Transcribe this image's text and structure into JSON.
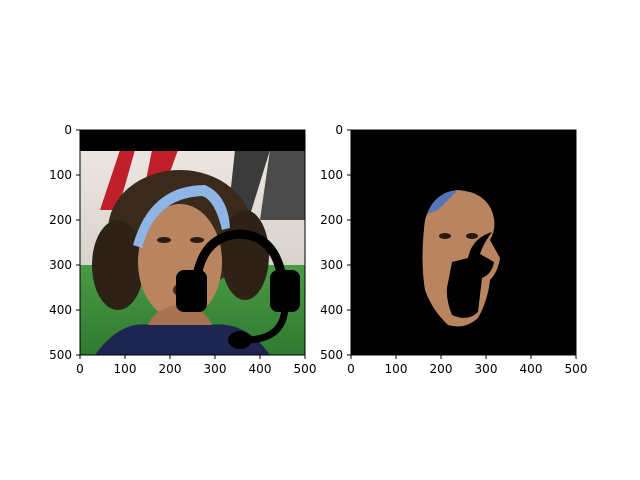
{
  "chart_data": [
    {
      "type": "image",
      "title": "",
      "xlabel": "",
      "ylabel": "",
      "xlim": [
        0,
        500
      ],
      "ylim": [
        500,
        0
      ],
      "xticks": [
        0,
        100,
        200,
        300,
        400,
        500
      ],
      "yticks": [
        0,
        100,
        200,
        300,
        400,
        500
      ],
      "content": "photo of a face with headset mask overlay"
    },
    {
      "type": "image",
      "title": "",
      "xlabel": "",
      "ylabel": "",
      "xlim": [
        0,
        500
      ],
      "ylim": [
        500,
        0
      ],
      "xticks": [
        0,
        100,
        200,
        300,
        400,
        500
      ],
      "yticks": [
        0,
        100,
        200,
        300,
        400,
        500
      ],
      "content": "segmented face region on black background"
    }
  ],
  "colors": {
    "background": "#ffffff",
    "axis": "#000000",
    "mask": "#000000",
    "skin": "#b98560",
    "skin_shadow": "#8a5a3b",
    "hair": "#3a2a1c",
    "headband": "#8fb4e6",
    "grass": "#3d8f3a",
    "backdrop": "#e7e1dc",
    "red_banner": "#c0202a",
    "jersey": "#1d2550"
  }
}
